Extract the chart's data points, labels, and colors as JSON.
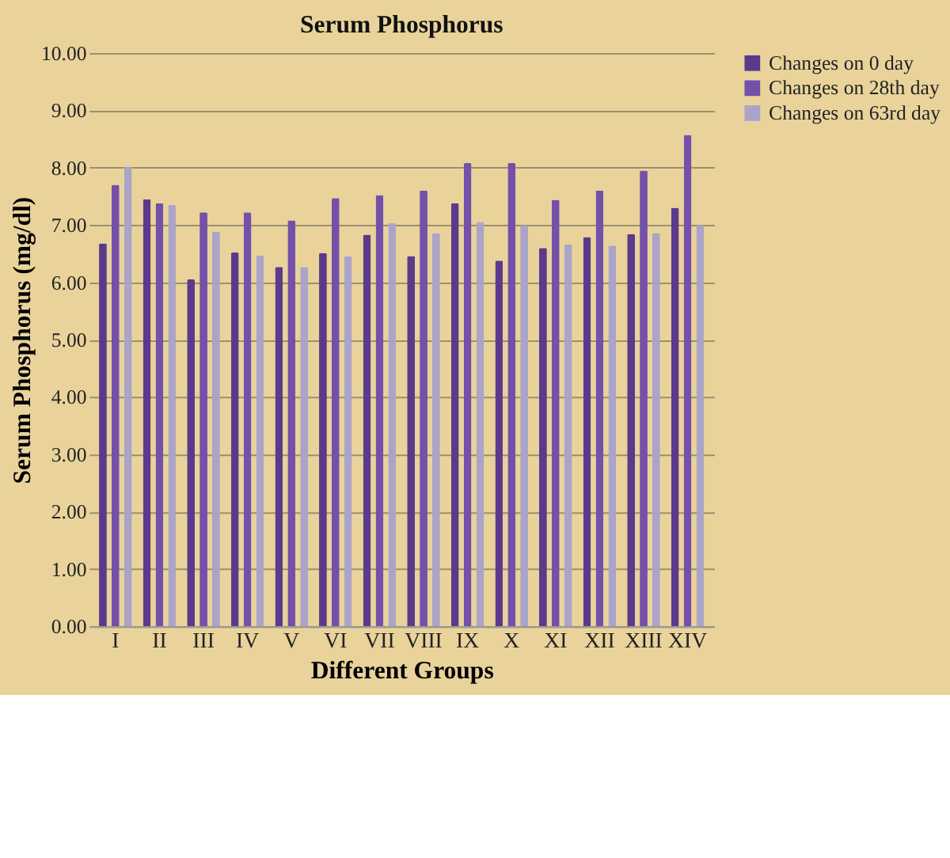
{
  "chart_data": {
    "type": "bar",
    "title": "Serum Phosphorus",
    "xlabel": "Different Groups",
    "ylabel": "Serum Phosphorus (mg/dl)",
    "categories": [
      "I",
      "II",
      "III",
      "IV",
      "V",
      "VI",
      "VII",
      "VIII",
      "IX",
      "X",
      "XI",
      "XII",
      "XIII",
      "XIV"
    ],
    "series": [
      {
        "name": "Changes on 0 day",
        "color": "#5b3a8c",
        "values": [
          6.68,
          7.45,
          6.05,
          6.52,
          6.27,
          6.51,
          6.83,
          6.46,
          7.38,
          6.38,
          6.6,
          6.79,
          6.84,
          7.3
        ]
      },
      {
        "name": "Changes on 28th day",
        "color": "#7450aa",
        "values": [
          7.7,
          7.38,
          7.22,
          7.22,
          7.08,
          7.47,
          7.52,
          7.6,
          8.08,
          8.08,
          7.44,
          7.6,
          7.95,
          8.57
        ]
      },
      {
        "name": "Changes on 63rd day",
        "color": "#aaa4c9",
        "values": [
          8.02,
          7.35,
          6.88,
          6.47,
          6.27,
          6.45,
          7.03,
          6.86,
          7.05,
          6.99,
          6.66,
          6.64,
          6.86,
          7.0
        ]
      }
    ],
    "ylim": [
      0,
      10
    ],
    "yticks": [
      {
        "value": 0,
        "label": "0.00"
      },
      {
        "value": 1,
        "label": "1.00"
      },
      {
        "value": 2,
        "label": "2.00"
      },
      {
        "value": 3,
        "label": "3.00"
      },
      {
        "value": 4,
        "label": "4.00"
      },
      {
        "value": 5,
        "label": "5.00"
      },
      {
        "value": 6,
        "label": "6.00"
      },
      {
        "value": 7,
        "label": "7.00"
      },
      {
        "value": 8,
        "label": "8.00"
      },
      {
        "value": 9,
        "label": "9.00"
      },
      {
        "value": 10,
        "label": "10.00"
      }
    ],
    "grid": "y",
    "legend": "right"
  }
}
